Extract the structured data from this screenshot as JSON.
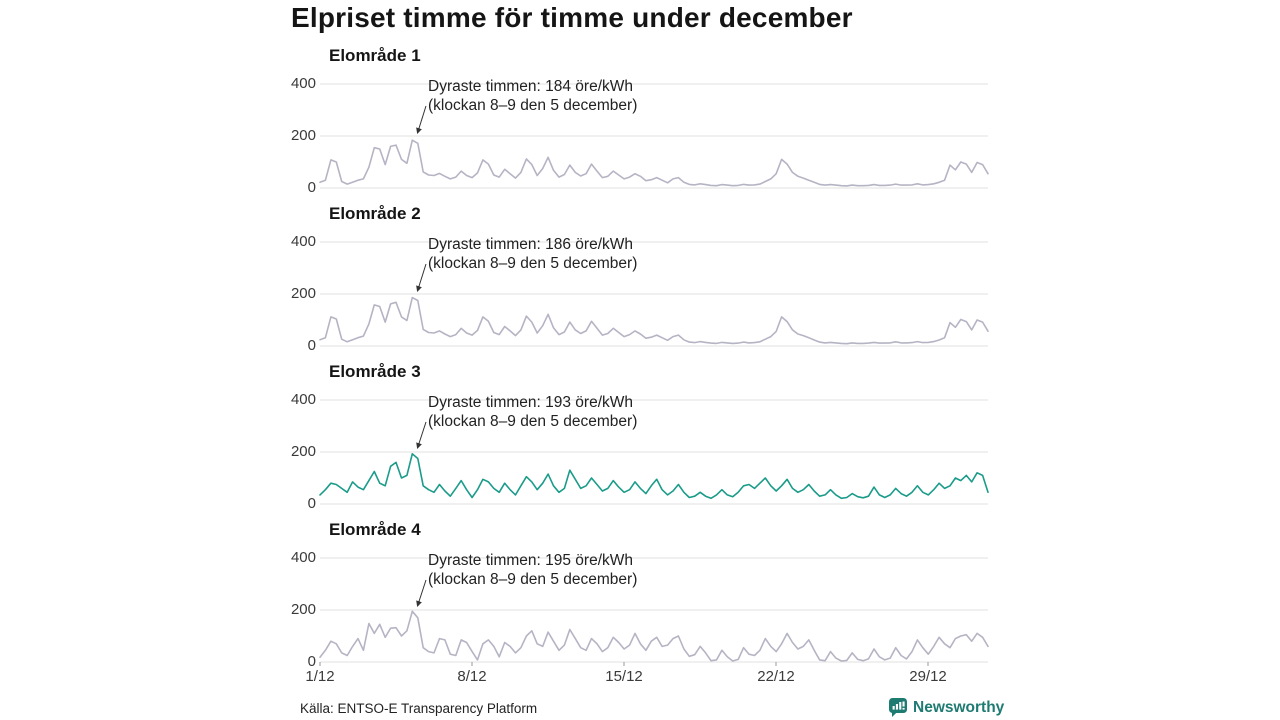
{
  "title": "Elpriset timme för timme under december",
  "axis": {
    "y_ticks": [
      "400",
      "200",
      "0"
    ],
    "x_ticks": [
      "1/12",
      "8/12",
      "15/12",
      "22/12",
      "29/12"
    ]
  },
  "footer": {
    "source": "Källa: ENTSO-E Transparency Platform",
    "brand": "Newsworthy"
  },
  "colors": {
    "line_gray": "#b5b4c4",
    "line_teal": "#1b9b8a",
    "annotation_arrow": "#333333",
    "brand_teal": "#1e7b72"
  },
  "chart_data": [
    {
      "type": "line",
      "title": "Elområde 1",
      "color": "#b5b4c4",
      "annotation_line1": "Dyraste timmen: 184 öre/kWh",
      "annotation_line2": "(klockan 8–9 den 5 december)",
      "max_value": 184,
      "max_time": "klockan 8–9 den 5 december",
      "unit": "öre/kWh",
      "x_range": [
        "1/12",
        "31/12"
      ],
      "ylim": [
        0,
        420
      ],
      "sample_interval_hours": 6,
      "values": [
        22,
        30,
        108,
        100,
        25,
        15,
        22,
        30,
        35,
        80,
        155,
        150,
        90,
        160,
        165,
        110,
        95,
        184,
        172,
        62,
        50,
        48,
        56,
        45,
        35,
        42,
        65,
        48,
        40,
        58,
        108,
        92,
        50,
        42,
        72,
        55,
        38,
        60,
        112,
        90,
        48,
        75,
        118,
        68,
        42,
        52,
        88,
        60,
        46,
        55,
        92,
        65,
        40,
        45,
        65,
        50,
        35,
        42,
        55,
        45,
        28,
        32,
        40,
        30,
        20,
        35,
        40,
        22,
        14,
        12,
        16,
        13,
        10,
        9,
        13,
        11,
        9,
        10,
        14,
        11,
        12,
        15,
        25,
        35,
        55,
        110,
        92,
        60,
        45,
        38,
        30,
        22,
        14,
        11,
        13,
        11,
        9,
        8,
        11,
        9,
        9,
        10,
        13,
        10,
        10,
        11,
        15,
        11,
        11,
        12,
        16,
        12,
        13,
        16,
        22,
        30,
        88,
        70,
        100,
        92,
        60,
        98,
        90,
        55
      ]
    },
    {
      "type": "line",
      "title": "Elområde 2",
      "color": "#b5b4c4",
      "annotation_line1": "Dyraste timmen: 186 öre/kWh",
      "annotation_line2": "(klockan 8–9 den 5 december)",
      "max_value": 186,
      "max_time": "klockan 8–9 den 5 december",
      "unit": "öre/kWh",
      "x_range": [
        "1/12",
        "31/12"
      ],
      "ylim": [
        0,
        420
      ],
      "sample_interval_hours": 6,
      "values": [
        24,
        32,
        112,
        104,
        26,
        16,
        24,
        32,
        38,
        85,
        158,
        152,
        92,
        162,
        168,
        112,
        98,
        186,
        175,
        64,
        52,
        50,
        58,
        46,
        36,
        44,
        68,
        50,
        42,
        60,
        112,
        95,
        52,
        44,
        75,
        58,
        40,
        62,
        115,
        92,
        50,
        78,
        122,
        70,
        44,
        54,
        92,
        62,
        48,
        58,
        95,
        68,
        42,
        48,
        68,
        52,
        36,
        44,
        58,
        46,
        30,
        34,
        42,
        32,
        22,
        36,
        42,
        24,
        15,
        13,
        17,
        14,
        11,
        10,
        14,
        12,
        10,
        11,
        15,
        12,
        13,
        16,
        26,
        36,
        56,
        112,
        94,
        62,
        46,
        40,
        32,
        23,
        15,
        12,
        14,
        12,
        10,
        9,
        12,
        10,
        10,
        11,
        14,
        11,
        11,
        12,
        16,
        12,
        12,
        13,
        17,
        13,
        14,
        17,
        23,
        32,
        90,
        72,
        102,
        94,
        62,
        100,
        92,
        57
      ]
    },
    {
      "type": "line",
      "title": "Elområde 3",
      "color": "#1b9b8a",
      "annotation_line1": "Dyraste timmen: 193 öre/kWh",
      "annotation_line2": "(klockan 8–9 den 5 december)",
      "max_value": 193,
      "max_time": "klockan 8–9 den 5 december",
      "unit": "öre/kWh",
      "x_range": [
        "1/12",
        "31/12"
      ],
      "ylim": [
        0,
        420
      ],
      "sample_interval_hours": 6,
      "values": [
        35,
        55,
        80,
        75,
        60,
        45,
        85,
        65,
        55,
        90,
        125,
        80,
        70,
        145,
        160,
        100,
        110,
        193,
        175,
        70,
        55,
        45,
        75,
        50,
        30,
        60,
        90,
        55,
        25,
        55,
        95,
        85,
        60,
        45,
        80,
        55,
        35,
        70,
        105,
        85,
        55,
        80,
        115,
        70,
        45,
        60,
        130,
        95,
        60,
        70,
        100,
        75,
        50,
        60,
        90,
        65,
        45,
        55,
        85,
        60,
        40,
        70,
        95,
        55,
        35,
        50,
        75,
        45,
        25,
        30,
        45,
        30,
        22,
        35,
        55,
        35,
        28,
        45,
        70,
        75,
        60,
        80,
        100,
        70,
        50,
        70,
        95,
        60,
        45,
        55,
        75,
        50,
        30,
        35,
        55,
        35,
        22,
        25,
        40,
        28,
        24,
        30,
        65,
        35,
        25,
        35,
        60,
        40,
        30,
        45,
        70,
        45,
        35,
        55,
        80,
        60,
        70,
        100,
        90,
        110,
        85,
        120,
        110,
        45
      ]
    },
    {
      "type": "line",
      "title": "Elområde 4",
      "color": "#b5b4c4",
      "annotation_line1": "Dyraste timmen: 195 öre/kWh",
      "annotation_line2": "(klockan 8–9 den 5 december)",
      "max_value": 195,
      "max_time": "klockan 8–9 den 5 december",
      "unit": "öre/kWh",
      "x_range": [
        "1/12",
        "31/12"
      ],
      "ylim": [
        0,
        420
      ],
      "sample_interval_hours": 6,
      "values": [
        18,
        45,
        80,
        70,
        35,
        25,
        60,
        90,
        45,
        148,
        110,
        145,
        95,
        130,
        132,
        100,
        120,
        195,
        170,
        55,
        40,
        35,
        90,
        85,
        30,
        25,
        85,
        75,
        40,
        8,
        70,
        85,
        60,
        20,
        75,
        60,
        35,
        55,
        100,
        120,
        70,
        60,
        115,
        80,
        45,
        65,
        125,
        90,
        55,
        45,
        90,
        70,
        40,
        55,
        95,
        75,
        50,
        65,
        110,
        70,
        45,
        80,
        95,
        60,
        65,
        90,
        100,
        50,
        22,
        28,
        60,
        35,
        5,
        8,
        45,
        20,
        4,
        10,
        55,
        30,
        25,
        45,
        90,
        60,
        40,
        70,
        110,
        75,
        50,
        60,
        85,
        45,
        8,
        5,
        40,
        15,
        4,
        6,
        35,
        10,
        5,
        12,
        50,
        20,
        8,
        15,
        55,
        25,
        12,
        40,
        85,
        55,
        30,
        60,
        95,
        70,
        55,
        90,
        100,
        105,
        80,
        110,
        95,
        60
      ]
    }
  ]
}
